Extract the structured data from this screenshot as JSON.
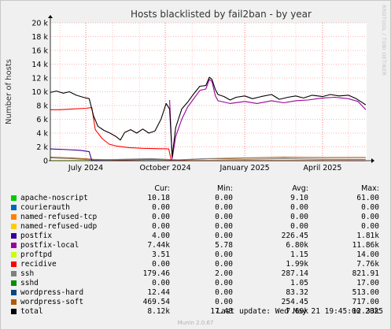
{
  "side_label": "RRDTOOL / TOBI OETIKER",
  "footer": "Munin 2.0.67",
  "legend": {
    "headers": [
      "Cur:",
      "Min:",
      "Avg:",
      "Max:"
    ],
    "last_update": "Last update: Wed May 21 19:45:00 2025",
    "rows": [
      {
        "name": "apache-noscript",
        "color": "#00cc00",
        "cur": "10.18",
        "min": "0.00",
        "avg": "9.10",
        "max": "61.00"
      },
      {
        "name": "courierauth",
        "color": "#0066b3",
        "cur": "0.00",
        "min": "0.00",
        "avg": "0.00",
        "max": "0.00"
      },
      {
        "name": "named-refused-tcp",
        "color": "#ff8000",
        "cur": "0.00",
        "min": "0.00",
        "avg": "0.00",
        "max": "0.00"
      },
      {
        "name": "named-refused-udp",
        "color": "#ffcc00",
        "cur": "0.00",
        "min": "0.00",
        "avg": "0.00",
        "max": "0.00"
      },
      {
        "name": "postfix",
        "color": "#330099",
        "cur": "4.00",
        "min": "0.00",
        "avg": "226.45",
        "max": "1.81k"
      },
      {
        "name": "postfix-local",
        "color": "#990099",
        "cur": "7.44k",
        "min": "5.78",
        "avg": "6.80k",
        "max": "11.86k"
      },
      {
        "name": "proftpd",
        "color": "#ccff00",
        "cur": "3.51",
        "min": "0.00",
        "avg": "1.15",
        "max": "14.00"
      },
      {
        "name": "recidive",
        "color": "#ff0000",
        "cur": "0.00",
        "min": "0.00",
        "avg": "1.99k",
        "max": "7.76k"
      },
      {
        "name": "ssh",
        "color": "#808080",
        "cur": "179.46",
        "min": "2.00",
        "avg": "287.14",
        "max": "821.91"
      },
      {
        "name": "sshd",
        "color": "#008f00",
        "cur": "0.00",
        "min": "0.00",
        "avg": "1.05",
        "max": "17.00"
      },
      {
        "name": "wordpress-hard",
        "color": "#00487d",
        "cur": "12.44",
        "min": "0.00",
        "avg": "83.32",
        "max": "513.00"
      },
      {
        "name": "wordpress-soft",
        "color": "#b35a00",
        "cur": "469.54",
        "min": "0.00",
        "avg": "254.45",
        "max": "717.00"
      },
      {
        "name": "total",
        "color": "#000000",
        "cur": "8.12k",
        "min": "17.48",
        "avg": "7.69k",
        "max": "12.33k"
      }
    ]
  },
  "chart_data": {
    "type": "line",
    "title": "Hosts blacklisted by fail2ban - by year",
    "ylabel": "Number of hosts",
    "xlabel": "",
    "ylim": [
      0,
      20000
    ],
    "yticks": [
      0,
      2000,
      4000,
      6000,
      8000,
      10000,
      12000,
      14000,
      16000,
      18000,
      20000
    ],
    "ytick_labels": [
      "0",
      "2 k",
      "4 k",
      "6 k",
      "8 k",
      "10 k",
      "12 k",
      "14 k",
      "16 k",
      "18 k",
      "20 k"
    ],
    "xlim": [
      "2024-05-21",
      "2025-05-22"
    ],
    "xticks": [
      {
        "label": "July 2024",
        "date": "2024-07-01"
      },
      {
        "label": "October 2024",
        "date": "2024-10-01"
      },
      {
        "label": "January 2025",
        "date": "2025-01-01"
      },
      {
        "label": "April 2025",
        "date": "2025-04-01"
      }
    ],
    "vlines": [
      "2024-06-01",
      "2024-08-01",
      "2024-09-01",
      "2024-11-01",
      "2024-12-01",
      "2025-02-01",
      "2025-03-01",
      "2025-05-01"
    ],
    "grid": true,
    "series": [
      {
        "name": "total",
        "color": "#000000",
        "points": [
          [
            "2024-05-21",
            9900
          ],
          [
            "2024-05-28",
            10100
          ],
          [
            "2024-06-05",
            9800
          ],
          [
            "2024-06-12",
            10000
          ],
          [
            "2024-06-20",
            9500
          ],
          [
            "2024-06-28",
            9200
          ],
          [
            "2024-07-05",
            9000
          ],
          [
            "2024-07-10",
            6500
          ],
          [
            "2024-07-15",
            5000
          ],
          [
            "2024-07-22",
            4400
          ],
          [
            "2024-07-29",
            4000
          ],
          [
            "2024-08-05",
            3500
          ],
          [
            "2024-08-10",
            3000
          ],
          [
            "2024-08-15",
            4100
          ],
          [
            "2024-08-22",
            4500
          ],
          [
            "2024-08-29",
            4000
          ],
          [
            "2024-09-05",
            4600
          ],
          [
            "2024-09-12",
            4000
          ],
          [
            "2024-09-19",
            4300
          ],
          [
            "2024-09-26",
            6000
          ],
          [
            "2024-10-02",
            8300
          ],
          [
            "2024-10-06",
            7500
          ],
          [
            "2024-10-09",
            600
          ],
          [
            "2024-10-13",
            4800
          ],
          [
            "2024-10-20",
            7500
          ],
          [
            "2024-10-27",
            8500
          ],
          [
            "2024-11-03",
            9700
          ],
          [
            "2024-11-10",
            10800
          ],
          [
            "2024-11-17",
            10900
          ],
          [
            "2024-11-21",
            12100
          ],
          [
            "2024-11-24",
            11800
          ],
          [
            "2024-11-28",
            10300
          ],
          [
            "2024-12-01",
            9600
          ],
          [
            "2024-12-08",
            9300
          ],
          [
            "2024-12-15",
            8800
          ],
          [
            "2024-12-22",
            9200
          ],
          [
            "2025-01-01",
            9400
          ],
          [
            "2025-01-10",
            9000
          ],
          [
            "2025-01-20",
            9300
          ],
          [
            "2025-02-01",
            9600
          ],
          [
            "2025-02-10",
            8900
          ],
          [
            "2025-02-20",
            9200
          ],
          [
            "2025-03-01",
            9400
          ],
          [
            "2025-03-10",
            9100
          ],
          [
            "2025-03-20",
            9500
          ],
          [
            "2025-04-01",
            9300
          ],
          [
            "2025-04-10",
            9600
          ],
          [
            "2025-04-20",
            9400
          ],
          [
            "2025-05-01",
            9500
          ],
          [
            "2025-05-10",
            9000
          ],
          [
            "2025-05-16",
            8500
          ],
          [
            "2025-05-21",
            8100
          ]
        ]
      },
      {
        "name": "postfix-local",
        "color": "#990099",
        "points": [
          [
            "2024-10-06",
            8800
          ],
          [
            "2024-10-09",
            300
          ],
          [
            "2024-10-13",
            3500
          ],
          [
            "2024-10-20",
            6000
          ],
          [
            "2024-10-27",
            7800
          ],
          [
            "2024-11-03",
            9000
          ],
          [
            "2024-11-10",
            10200
          ],
          [
            "2024-11-17",
            10400
          ],
          [
            "2024-11-21",
            11800
          ],
          [
            "2024-11-24",
            11500
          ],
          [
            "2024-11-28",
            9400
          ],
          [
            "2024-12-01",
            8700
          ],
          [
            "2024-12-15",
            8300
          ],
          [
            "2025-01-01",
            8600
          ],
          [
            "2025-01-15",
            8300
          ],
          [
            "2025-02-01",
            8700
          ],
          [
            "2025-02-15",
            8400
          ],
          [
            "2025-03-01",
            8700
          ],
          [
            "2025-03-15",
            8800
          ],
          [
            "2025-04-01",
            9100
          ],
          [
            "2025-04-15",
            9200
          ],
          [
            "2025-05-01",
            9000
          ],
          [
            "2025-05-12",
            8600
          ],
          [
            "2025-05-21",
            7400
          ]
        ]
      },
      {
        "name": "recidive",
        "color": "#ff0000",
        "points": [
          [
            "2024-05-21",
            7400
          ],
          [
            "2024-06-01",
            7400
          ],
          [
            "2024-06-15",
            7500
          ],
          [
            "2024-07-01",
            7600
          ],
          [
            "2024-07-08",
            7700
          ],
          [
            "2024-07-12",
            4500
          ],
          [
            "2024-07-20",
            3200
          ],
          [
            "2024-07-28",
            2400
          ],
          [
            "2024-08-06",
            2100
          ],
          [
            "2024-08-20",
            1900
          ],
          [
            "2024-09-05",
            1800
          ],
          [
            "2024-09-20",
            1750
          ],
          [
            "2024-10-05",
            1700
          ],
          [
            "2024-10-08",
            0
          ],
          [
            "2025-05-21",
            0
          ]
        ]
      },
      {
        "name": "postfix",
        "color": "#330099",
        "points": [
          [
            "2024-05-21",
            1700
          ],
          [
            "2024-06-10",
            1600
          ],
          [
            "2024-06-25",
            1500
          ],
          [
            "2024-07-05",
            1300
          ],
          [
            "2024-07-08",
            0
          ],
          [
            "2025-05-21",
            0
          ]
        ]
      },
      {
        "name": "ssh",
        "color": "#808080",
        "points": [
          [
            "2024-05-21",
            400
          ],
          [
            "2024-06-15",
            300
          ],
          [
            "2024-07-10",
            100
          ],
          [
            "2024-08-10",
            200
          ],
          [
            "2024-09-15",
            300
          ],
          [
            "2024-10-15",
            100
          ],
          [
            "2024-11-15",
            300
          ],
          [
            "2025-01-01",
            200
          ],
          [
            "2025-02-15",
            300
          ],
          [
            "2025-04-01",
            200
          ],
          [
            "2025-05-21",
            180
          ]
        ]
      },
      {
        "name": "wordpress-soft",
        "color": "#b35a00",
        "points": [
          [
            "2024-05-21",
            500
          ],
          [
            "2024-06-15",
            400
          ],
          [
            "2024-07-10",
            200
          ],
          [
            "2024-08-10",
            100
          ],
          [
            "2024-09-15",
            200
          ],
          [
            "2024-10-20",
            100
          ],
          [
            "2024-11-20",
            300
          ],
          [
            "2025-01-01",
            400
          ],
          [
            "2025-02-15",
            500
          ],
          [
            "2025-04-01",
            450
          ],
          [
            "2025-05-21",
            470
          ]
        ]
      },
      {
        "name": "proftpd",
        "color": "#ccff00",
        "points": [
          [
            "2024-05-21",
            10
          ],
          [
            "2025-05-21",
            4
          ]
        ]
      }
    ]
  }
}
